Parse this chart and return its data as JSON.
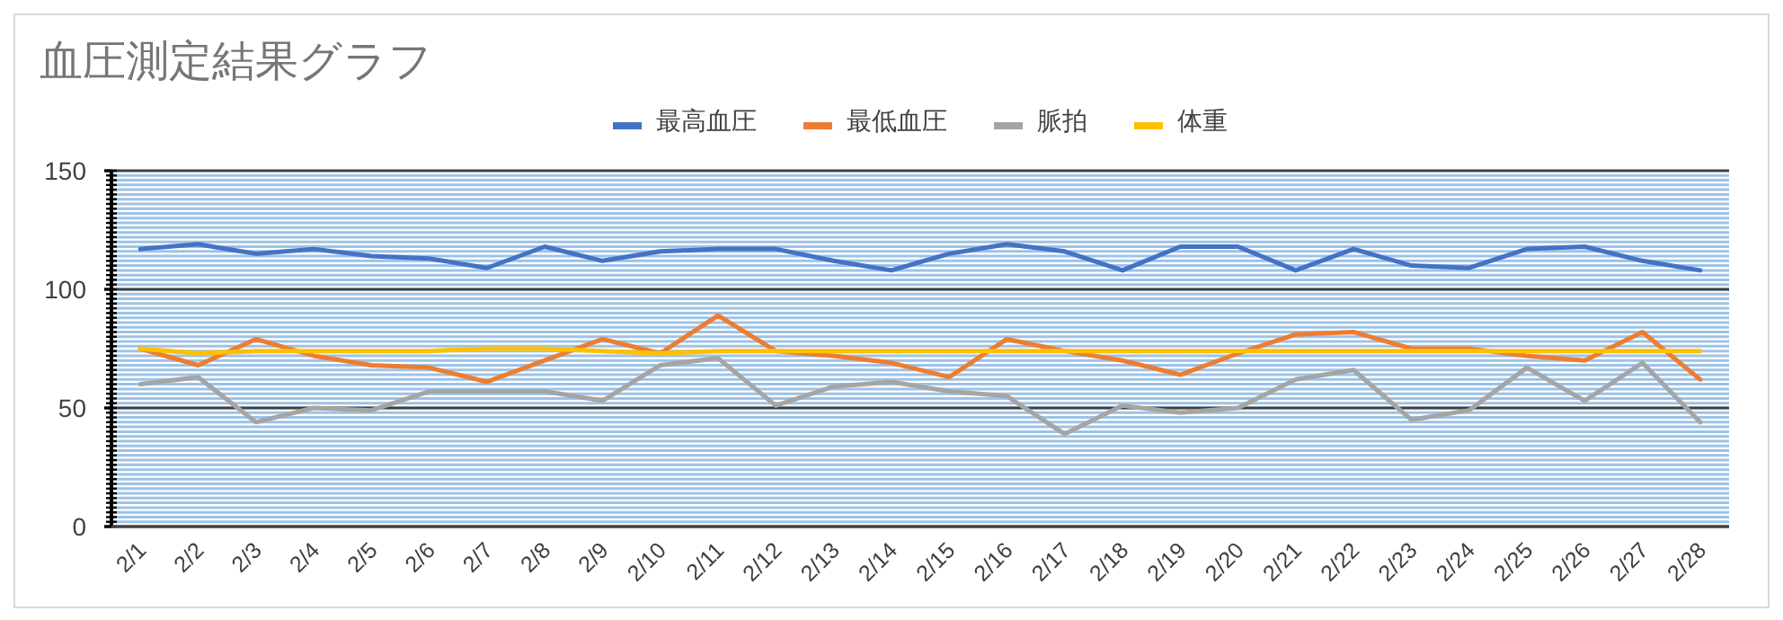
{
  "chart_data": {
    "type": "line",
    "title": "血圧測定結果グラフ",
    "categories": [
      "2/1",
      "2/2",
      "2/3",
      "2/4",
      "2/5",
      "2/6",
      "2/7",
      "2/8",
      "2/9",
      "2/10",
      "2/11",
      "2/12",
      "2/13",
      "2/14",
      "2/15",
      "2/16",
      "2/17",
      "2/18",
      "2/19",
      "2/20",
      "2/21",
      "2/22",
      "2/23",
      "2/24",
      "2/25",
      "2/26",
      "2/27",
      "2/28"
    ],
    "series": [
      {
        "name": "最高血圧",
        "color": "#4472c4",
        "values": [
          117,
          119,
          115,
          117,
          114,
          113,
          109,
          118,
          112,
          116,
          117,
          117,
          112,
          108,
          115,
          119,
          116,
          108,
          118,
          118,
          108,
          117,
          110,
          109,
          117,
          118,
          112,
          108
        ]
      },
      {
        "name": "最低血圧",
        "color": "#ed7d31",
        "values": [
          75,
          68,
          79,
          72,
          68,
          67,
          61,
          70,
          79,
          73,
          89,
          74,
          72,
          69,
          63,
          79,
          74,
          70,
          64,
          73,
          81,
          82,
          75,
          75,
          72,
          70,
          82,
          62
        ]
      },
      {
        "name": "脈拍",
        "color": "#a5a5a5",
        "values": [
          60,
          63,
          44,
          50,
          49,
          57,
          57,
          57,
          53,
          68,
          71,
          51,
          59,
          61,
          57,
          55,
          39,
          51,
          48,
          50,
          62,
          66,
          45,
          49,
          67,
          53,
          69,
          44
        ]
      },
      {
        "name": "体重",
        "color": "#ffc000",
        "values": [
          75,
          73,
          74,
          74,
          74,
          74,
          75,
          75,
          74,
          73,
          74,
          74,
          74,
          74,
          74,
          74,
          74,
          74,
          74,
          74,
          74,
          74,
          74,
          74,
          74,
          74,
          74,
          74
        ]
      }
    ],
    "ylim": [
      0,
      150
    ],
    "yticks": [
      0,
      50,
      100,
      150
    ],
    "grid": "y",
    "legend": "top",
    "marker": "none",
    "line_style": "solid"
  }
}
